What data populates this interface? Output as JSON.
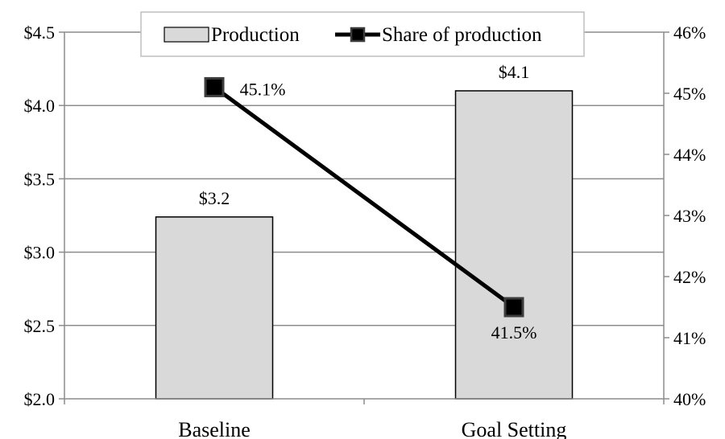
{
  "chart_data": {
    "type": "bar",
    "categories": [
      "Baseline",
      "Goal Setting"
    ],
    "series": [
      {
        "name": "Production",
        "type": "bar",
        "axis": "left",
        "values": [
          3.24,
          4.1
        ],
        "labels": [
          "$3.2",
          "$4.1"
        ],
        "color": "#d9d9d9"
      },
      {
        "name": "Share of production",
        "type": "line",
        "axis": "right",
        "values": [
          45.1,
          41.5
        ],
        "labels": [
          "45.1%",
          "41.5%"
        ],
        "color": "#000000"
      }
    ],
    "y_left": {
      "lim": [
        2.0,
        4.5
      ],
      "ticks": [
        2.0,
        2.5,
        3.0,
        3.5,
        4.0,
        4.5
      ],
      "tick_labels": [
        "$2.0",
        "$2.5",
        "$3.0",
        "$3.5",
        "$4.0",
        "$4.5"
      ]
    },
    "y_right": {
      "lim": [
        40,
        46
      ],
      "ticks": [
        40,
        41,
        42,
        43,
        44,
        45,
        46
      ],
      "tick_labels": [
        "40%",
        "41%",
        "42%",
        "43%",
        "44%",
        "45%",
        "46%"
      ]
    },
    "title": "",
    "xlabel": "",
    "ylabel": "",
    "grid": true,
    "legend": "top-center"
  }
}
